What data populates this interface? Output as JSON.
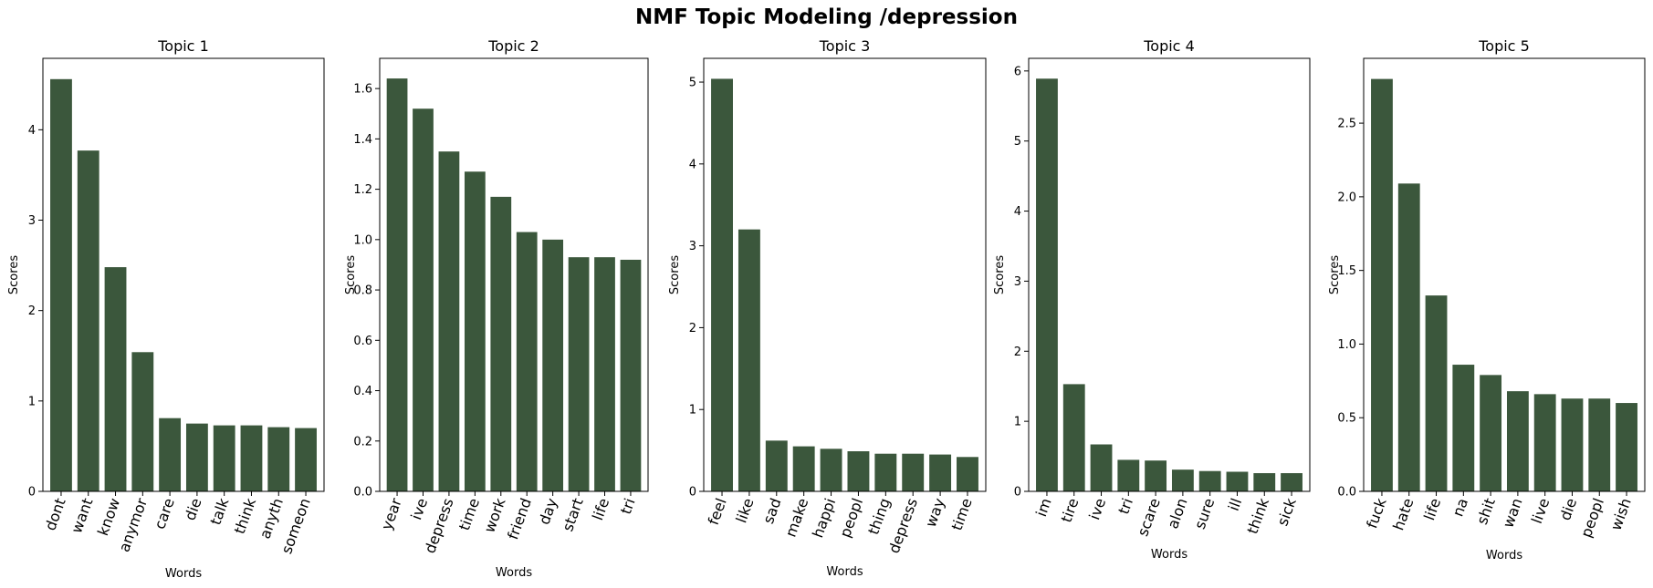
{
  "figure": {
    "title": "NMF Topic Modeling /depression"
  },
  "chart_data": [
    {
      "type": "bar",
      "title": "Topic 1",
      "xlabel": "Words",
      "ylabel": "Scores",
      "categories": [
        "dont",
        "want",
        "know",
        "anymor",
        "care",
        "die",
        "talk",
        "think",
        "anyth",
        "someon"
      ],
      "values": [
        4.56,
        3.77,
        2.48,
        1.54,
        0.81,
        0.75,
        0.73,
        0.73,
        0.71,
        0.7
      ],
      "ylim": [
        0,
        4.79
      ],
      "yticks": [
        0,
        1,
        2,
        3,
        4
      ],
      "ytick_labels": [
        "0",
        "1",
        "2",
        "3",
        "4"
      ],
      "color": "#3b573c",
      "grid": false
    },
    {
      "type": "bar",
      "title": "Topic 2",
      "xlabel": "Words",
      "ylabel": "Scores",
      "categories": [
        "year",
        "ive",
        "depress",
        "time",
        "work",
        "friend",
        "day",
        "start",
        "life",
        "tri"
      ],
      "values": [
        1.64,
        1.52,
        1.35,
        1.27,
        1.17,
        1.03,
        1.0,
        0.93,
        0.93,
        0.92
      ],
      "ylim": [
        0,
        1.72
      ],
      "yticks": [
        0,
        0.2,
        0.4,
        0.6,
        0.8,
        1.0,
        1.2,
        1.4,
        1.6
      ],
      "ytick_labels": [
        "0.0",
        "0.2",
        "0.4",
        "0.6",
        "0.8",
        "1.0",
        "1.2",
        "1.4",
        "1.6"
      ],
      "color": "#3b573c",
      "grid": false
    },
    {
      "type": "bar",
      "title": "Topic 3",
      "xlabel": "Words",
      "ylabel": "Scores",
      "categories": [
        "feel",
        "like",
        "sad",
        "make",
        "happi",
        "peopl",
        "thing",
        "depress",
        "way",
        "time"
      ],
      "values": [
        5.04,
        3.2,
        0.62,
        0.55,
        0.52,
        0.49,
        0.46,
        0.46,
        0.45,
        0.42
      ],
      "ylim": [
        0,
        5.29
      ],
      "yticks": [
        0,
        1,
        2,
        3,
        4,
        5
      ],
      "ytick_labels": [
        "0",
        "1",
        "2",
        "3",
        "4",
        "5"
      ],
      "color": "#3b573c",
      "grid": false
    },
    {
      "type": "bar",
      "title": "Topic 4",
      "xlabel": "Words",
      "ylabel": "Scores",
      "categories": [
        "im",
        "tire",
        "ive",
        "tri",
        "scare",
        "alon",
        "sure",
        "ill",
        "think",
        "sick"
      ],
      "values": [
        5.89,
        1.53,
        0.67,
        0.45,
        0.44,
        0.31,
        0.29,
        0.28,
        0.26,
        0.26
      ],
      "ylim": [
        0,
        6.18
      ],
      "yticks": [
        0,
        1,
        2,
        3,
        4,
        5,
        6
      ],
      "ytick_labels": [
        "0",
        "1",
        "2",
        "3",
        "4",
        "5",
        "6"
      ],
      "color": "#3b573c",
      "grid": false
    },
    {
      "type": "bar",
      "title": "Topic 5",
      "xlabel": "Words",
      "ylabel": "Scores",
      "categories": [
        "fuck",
        "hate",
        "life",
        "na",
        "shit",
        "wan",
        "live",
        "die",
        "peopl",
        "wish"
      ],
      "values": [
        2.8,
        2.09,
        1.33,
        0.86,
        0.79,
        0.68,
        0.66,
        0.63,
        0.63,
        0.6
      ],
      "ylim": [
        0,
        2.94
      ],
      "yticks": [
        0,
        0.5,
        1.0,
        1.5,
        2.0,
        2.5
      ],
      "ytick_labels": [
        "0.0",
        "0.5",
        "1.0",
        "1.5",
        "2.0",
        "2.5"
      ],
      "color": "#3b573c",
      "grid": false
    }
  ]
}
